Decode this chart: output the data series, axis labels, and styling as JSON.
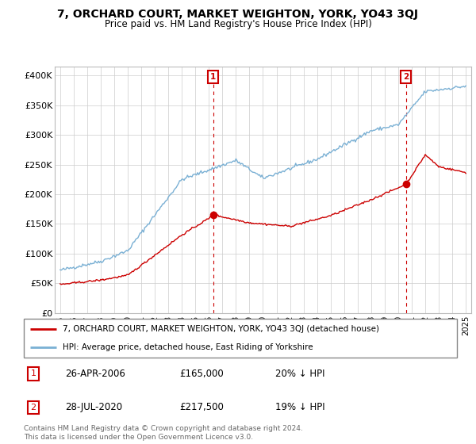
{
  "title": "7, ORCHARD COURT, MARKET WEIGHTON, YORK, YO43 3QJ",
  "subtitle": "Price paid vs. HM Land Registry's House Price Index (HPI)",
  "ylabel_ticks": [
    "£0",
    "£50K",
    "£100K",
    "£150K",
    "£200K",
    "£250K",
    "£300K",
    "£350K",
    "£400K"
  ],
  "ytick_values": [
    0,
    50000,
    100000,
    150000,
    200000,
    250000,
    300000,
    350000,
    400000
  ],
  "ylim": [
    0,
    415000
  ],
  "xlim_start": 1994.6,
  "xlim_end": 2025.4,
  "red_line_color": "#cc0000",
  "blue_line_color": "#7ab0d4",
  "marker1_x": 2006.32,
  "marker1_y": 165000,
  "marker1_label": "1",
  "marker2_x": 2020.57,
  "marker2_y": 217500,
  "marker2_label": "2",
  "vline1_x": 2006.32,
  "vline2_x": 2020.57,
  "legend_line1": "7, ORCHARD COURT, MARKET WEIGHTON, YORK, YO43 3QJ (detached house)",
  "legend_line2": "HPI: Average price, detached house, East Riding of Yorkshire",
  "table_row1": [
    "1",
    "26-APR-2006",
    "£165,000",
    "20% ↓ HPI"
  ],
  "table_row2": [
    "2",
    "28-JUL-2020",
    "£217,500",
    "19% ↓ HPI"
  ],
  "footer": "Contains HM Land Registry data © Crown copyright and database right 2024.\nThis data is licensed under the Open Government Licence v3.0.",
  "background_color": "#ffffff",
  "grid_color": "#cccccc"
}
